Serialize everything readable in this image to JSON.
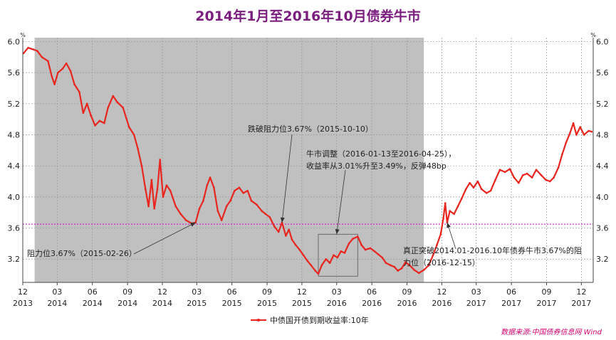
{
  "chart_data": {
    "type": "line",
    "title": "2014年1月至2016年10月债券牛市",
    "unit_label": "%",
    "ylim": [
      2.9,
      6.05
    ],
    "yticks": [
      3.2,
      3.6,
      4.0,
      4.4,
      4.8,
      5.2,
      5.6,
      6.0
    ],
    "ytick_labels": [
      "3.2",
      "3.6",
      "4.0",
      "4.4",
      "4.8",
      "5.2",
      "5.6",
      "6.0"
    ],
    "xlim": [
      "2013-12-01",
      "2018-01-01"
    ],
    "xticks": [
      {
        "date": "2013-12-01",
        "month": "12",
        "year": "2013"
      },
      {
        "date": "2014-03-01",
        "month": "03",
        "year": "2014"
      },
      {
        "date": "2014-06-01",
        "month": "06",
        "year": "2014"
      },
      {
        "date": "2014-09-01",
        "month": "09",
        "year": "2014"
      },
      {
        "date": "2014-12-01",
        "month": "12",
        "year": "2014"
      },
      {
        "date": "2015-03-01",
        "month": "03",
        "year": "2015"
      },
      {
        "date": "2015-06-01",
        "month": "06",
        "year": "2015"
      },
      {
        "date": "2015-09-01",
        "month": "09",
        "year": "2015"
      },
      {
        "date": "2015-12-01",
        "month": "12",
        "year": "2015"
      },
      {
        "date": "2016-03-01",
        "month": "03",
        "year": "2016"
      },
      {
        "date": "2016-06-01",
        "month": "06",
        "year": "2016"
      },
      {
        "date": "2016-09-01",
        "month": "09",
        "year": "2016"
      },
      {
        "date": "2016-12-01",
        "month": "12",
        "year": "2016"
      },
      {
        "date": "2017-03-01",
        "month": "03",
        "year": "2017"
      },
      {
        "date": "2017-06-01",
        "month": "06",
        "year": "2017"
      },
      {
        "date": "2017-09-01",
        "month": "09",
        "year": "2017"
      },
      {
        "date": "2017-12-01",
        "month": "12",
        "year": "2017"
      }
    ],
    "grid": true,
    "shaded_period": {
      "start": "2014-01-01",
      "end": "2016-10-15",
      "color": "#c0c0c0"
    },
    "reference_line": {
      "y": 3.65,
      "color": "#cc00cc",
      "style": "dotted"
    },
    "highlight_box": {
      "x0": "2016-01-13",
      "x1": "2016-04-25",
      "y0": 2.98,
      "y1": 3.52
    },
    "series": [
      {
        "name": "中债国开债到期收益率:10年",
        "color": "#e8251e",
        "points": [
          [
            "2013-12-03",
            5.85
          ],
          [
            "2013-12-15",
            5.92
          ],
          [
            "2013-12-28",
            5.9
          ],
          [
            "2014-01-08",
            5.88
          ],
          [
            "2014-01-20",
            5.8
          ],
          [
            "2014-02-05",
            5.75
          ],
          [
            "2014-02-15",
            5.55
          ],
          [
            "2014-02-22",
            5.45
          ],
          [
            "2014-03-03",
            5.6
          ],
          [
            "2014-03-15",
            5.65
          ],
          [
            "2014-03-25",
            5.72
          ],
          [
            "2014-04-05",
            5.62
          ],
          [
            "2014-04-15",
            5.45
          ],
          [
            "2014-04-28",
            5.35
          ],
          [
            "2014-05-08",
            5.08
          ],
          [
            "2014-05-18",
            5.2
          ],
          [
            "2014-05-28",
            5.05
          ],
          [
            "2014-06-08",
            4.92
          ],
          [
            "2014-06-20",
            4.98
          ],
          [
            "2014-07-02",
            4.95
          ],
          [
            "2014-07-12",
            5.15
          ],
          [
            "2014-07-25",
            5.3
          ],
          [
            "2014-08-05",
            5.22
          ],
          [
            "2014-08-20",
            5.15
          ],
          [
            "2014-09-05",
            4.9
          ],
          [
            "2014-09-18",
            4.8
          ],
          [
            "2014-09-28",
            4.62
          ],
          [
            "2014-10-08",
            4.4
          ],
          [
            "2014-10-18",
            4.1
          ],
          [
            "2014-10-26",
            3.88
          ],
          [
            "2014-11-03",
            4.22
          ],
          [
            "2014-11-10",
            3.85
          ],
          [
            "2014-11-18",
            4.1
          ],
          [
            "2014-11-25",
            4.48
          ],
          [
            "2014-12-03",
            4.0
          ],
          [
            "2014-12-12",
            4.15
          ],
          [
            "2014-12-22",
            4.08
          ],
          [
            "2015-01-05",
            3.88
          ],
          [
            "2015-01-18",
            3.78
          ],
          [
            "2015-02-01",
            3.7
          ],
          [
            "2015-02-15",
            3.66
          ],
          [
            "2015-02-26",
            3.67
          ],
          [
            "2015-03-08",
            3.85
          ],
          [
            "2015-03-18",
            3.95
          ],
          [
            "2015-03-28",
            4.15
          ],
          [
            "2015-04-05",
            4.25
          ],
          [
            "2015-04-15",
            4.12
          ],
          [
            "2015-04-25",
            3.82
          ],
          [
            "2015-05-05",
            3.7
          ],
          [
            "2015-05-18",
            3.88
          ],
          [
            "2015-05-28",
            3.95
          ],
          [
            "2015-06-08",
            4.08
          ],
          [
            "2015-06-20",
            4.12
          ],
          [
            "2015-07-01",
            4.05
          ],
          [
            "2015-07-12",
            4.08
          ],
          [
            "2015-07-22",
            3.95
          ],
          [
            "2015-08-05",
            3.9
          ],
          [
            "2015-08-18",
            3.82
          ],
          [
            "2015-08-28",
            3.78
          ],
          [
            "2015-09-08",
            3.74
          ],
          [
            "2015-09-20",
            3.62
          ],
          [
            "2015-10-01",
            3.55
          ],
          [
            "2015-10-10",
            3.67
          ],
          [
            "2015-10-20",
            3.5
          ],
          [
            "2015-10-28",
            3.58
          ],
          [
            "2015-11-05",
            3.45
          ],
          [
            "2015-11-15",
            3.38
          ],
          [
            "2015-11-25",
            3.32
          ],
          [
            "2015-12-05",
            3.25
          ],
          [
            "2015-12-15",
            3.18
          ],
          [
            "2015-12-25",
            3.12
          ],
          [
            "2016-01-05",
            3.05
          ],
          [
            "2016-01-13",
            3.01
          ],
          [
            "2016-01-22",
            3.12
          ],
          [
            "2016-02-02",
            3.2
          ],
          [
            "2016-02-12",
            3.15
          ],
          [
            "2016-02-22",
            3.25
          ],
          [
            "2016-03-03",
            3.22
          ],
          [
            "2016-03-12",
            3.3
          ],
          [
            "2016-03-22",
            3.28
          ],
          [
            "2016-04-02",
            3.4
          ],
          [
            "2016-04-12",
            3.46
          ],
          [
            "2016-04-25",
            3.49
          ],
          [
            "2016-05-05",
            3.38
          ],
          [
            "2016-05-15",
            3.32
          ],
          [
            "2016-05-28",
            3.34
          ],
          [
            "2016-06-08",
            3.3
          ],
          [
            "2016-06-18",
            3.26
          ],
          [
            "2016-06-28",
            3.22
          ],
          [
            "2016-07-08",
            3.15
          ],
          [
            "2016-07-20",
            3.12
          ],
          [
            "2016-07-30",
            3.1
          ],
          [
            "2016-08-08",
            3.05
          ],
          [
            "2016-08-18",
            3.08
          ],
          [
            "2016-08-28",
            3.16
          ],
          [
            "2016-09-08",
            3.12
          ],
          [
            "2016-09-20",
            3.06
          ],
          [
            "2016-10-02",
            3.02
          ],
          [
            "2016-10-15",
            3.06
          ],
          [
            "2016-10-28",
            3.12
          ],
          [
            "2016-11-08",
            3.25
          ],
          [
            "2016-11-18",
            3.38
          ],
          [
            "2016-11-28",
            3.52
          ],
          [
            "2016-12-05",
            3.72
          ],
          [
            "2016-12-10",
            3.92
          ],
          [
            "2016-12-15",
            3.67
          ],
          [
            "2016-12-22",
            3.82
          ],
          [
            "2017-01-02",
            3.78
          ],
          [
            "2017-01-12",
            3.88
          ],
          [
            "2017-01-22",
            3.98
          ],
          [
            "2017-02-02",
            4.1
          ],
          [
            "2017-02-12",
            4.18
          ],
          [
            "2017-02-22",
            4.12
          ],
          [
            "2017-03-05",
            4.2
          ],
          [
            "2017-03-15",
            4.1
          ],
          [
            "2017-03-28",
            4.05
          ],
          [
            "2017-04-08",
            4.08
          ],
          [
            "2017-04-20",
            4.22
          ],
          [
            "2017-05-02",
            4.35
          ],
          [
            "2017-05-15",
            4.32
          ],
          [
            "2017-05-28",
            4.36
          ],
          [
            "2017-06-08",
            4.25
          ],
          [
            "2017-06-20",
            4.18
          ],
          [
            "2017-07-01",
            4.28
          ],
          [
            "2017-07-12",
            4.3
          ],
          [
            "2017-07-25",
            4.25
          ],
          [
            "2017-08-05",
            4.35
          ],
          [
            "2017-08-18",
            4.28
          ],
          [
            "2017-08-30",
            4.22
          ],
          [
            "2017-09-10",
            4.2
          ],
          [
            "2017-09-20",
            4.25
          ],
          [
            "2017-10-02",
            4.38
          ],
          [
            "2017-10-12",
            4.55
          ],
          [
            "2017-10-22",
            4.7
          ],
          [
            "2017-11-01",
            4.82
          ],
          [
            "2017-11-10",
            4.95
          ],
          [
            "2017-11-18",
            4.8
          ],
          [
            "2017-11-28",
            4.9
          ],
          [
            "2017-12-08",
            4.8
          ],
          [
            "2017-12-20",
            4.85
          ],
          [
            "2017-12-28",
            4.84
          ]
        ]
      }
    ],
    "annotations": [
      {
        "text": "阻力位3.67%（2015-02-26）",
        "target_date": "2015-02-26",
        "target_y": 3.67
      },
      {
        "text": "跌破阻力位3.67%（2015-10-10）",
        "target_date": "2015-10-10",
        "target_y": 3.67
      },
      {
        "text": "牛市调整（2016-01-13至2016-04-25），",
        "text_line2": "收益率从3.01%升至3.49%，反弹48bp",
        "target_date": "2016-03-01",
        "target_y": 3.52
      },
      {
        "text": "真正突破2014.01-2016.10年债券牛市3.67%的阻",
        "text_line2": "力位（2016-12-15）",
        "target_date": "2016-12-15",
        "target_y": 3.67
      }
    ],
    "legend": {
      "label": "中债国开债到期收益率:10年",
      "placement": "bottom"
    },
    "source": "数据来源:中国债券信息网 Wind"
  }
}
